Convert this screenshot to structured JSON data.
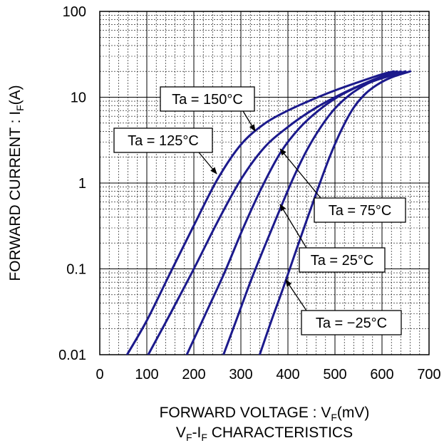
{
  "chart_data": {
    "type": "line",
    "title_prefix": "V",
    "title_sub1": "F",
    "title_mid": "-I",
    "title_sub2": "F",
    "title_suffix": " CHARACTERISTICS",
    "xlabel_prefix": "FORWARD VOLTAGE : V",
    "xlabel_sub": "F",
    "xlabel_suffix": "(mV)",
    "ylabel_prefix": "FORWARD CURRENT : I",
    "ylabel_sub": "F",
    "ylabel_suffix": "(A)",
    "x_scale": "linear",
    "y_scale": "log",
    "xlim": [
      0,
      700
    ],
    "ylim": [
      0.01,
      100
    ],
    "x_ticks": [
      "0",
      "100",
      "200",
      "300",
      "400",
      "500",
      "600",
      "700"
    ],
    "y_ticks": [
      "0.01",
      "0.1",
      "1",
      "10",
      "100"
    ],
    "grid": true,
    "line_color": "#1c1a8c",
    "series": [
      {
        "name": "Ta = 150°C",
        "x": [
          58,
          100,
          150,
          200,
          250,
          300,
          350,
          400,
          450,
          500,
          550,
          600,
          625
        ],
        "y": [
          0.01,
          0.025,
          0.09,
          0.32,
          1.1,
          2.8,
          4.9,
          7.0,
          9.3,
          12.0,
          15.0,
          18.5,
          20
        ]
      },
      {
        "name": "Ta = 125°C",
        "x": [
          103,
          150,
          200,
          250,
          300,
          350,
          400,
          450,
          500,
          550,
          600,
          632
        ],
        "y": [
          0.01,
          0.03,
          0.1,
          0.35,
          1.1,
          2.6,
          4.5,
          7.0,
          10.0,
          13.5,
          17.5,
          20
        ]
      },
      {
        "name": "Ta = 75°C",
        "x": [
          185,
          225,
          265,
          305,
          345,
          385,
          425,
          465,
          505,
          545,
          585,
          640
        ],
        "y": [
          0.01,
          0.03,
          0.09,
          0.3,
          0.9,
          2.3,
          4.4,
          7.0,
          10.0,
          13.0,
          16.0,
          20
        ]
      },
      {
        "name": "Ta = 25°C",
        "x": [
          263,
          290,
          320,
          350,
          380,
          410,
          440,
          470,
          500,
          530,
          560,
          590,
          650
        ],
        "y": [
          0.01,
          0.025,
          0.07,
          0.18,
          0.45,
          1.1,
          2.4,
          4.5,
          7.4,
          10.5,
          13.5,
          16.0,
          20
        ]
      },
      {
        "name": "Ta = −25°C",
        "x": [
          340,
          365,
          390,
          415,
          440,
          465,
          490,
          515,
          540,
          565,
          590,
          620,
          660
        ],
        "y": [
          0.01,
          0.025,
          0.06,
          0.15,
          0.37,
          0.9,
          2.1,
          4.3,
          7.6,
          11.0,
          14.0,
          17.0,
          20
        ]
      }
    ],
    "callouts": [
      {
        "label": "Ta = 150°C"
      },
      {
        "label": "Ta = 125°C"
      },
      {
        "label": "Ta = 75°C"
      },
      {
        "label": "Ta = 25°C"
      },
      {
        "label": "Ta = −25°C"
      }
    ]
  }
}
